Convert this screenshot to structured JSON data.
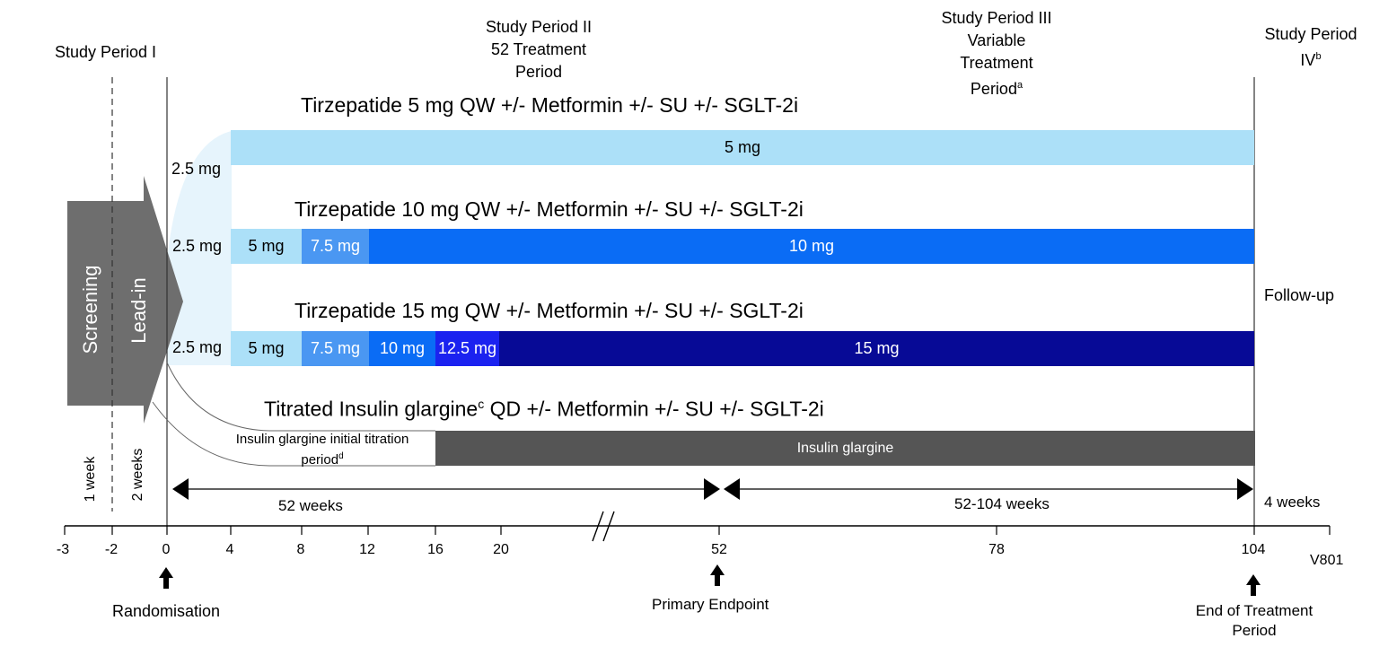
{
  "periods": {
    "p1": "Study Period I",
    "p2_line1": "Study Period II",
    "p2_line2": "52 Treatment",
    "p2_line3": "Period",
    "p3_line1": "Study Period III",
    "p3_line2": "Variable",
    "p3_line3": "Treatment",
    "p3_line4": "Period",
    "p3_sup": "a",
    "p4_line1": "Study Period",
    "p4_line2": "IV",
    "p4_sup": "b"
  },
  "arms": {
    "arm1": "Tirzepatide 5 mg QW +/- Metformin +/- SU +/- SGLT-2i",
    "arm2": "Tirzepatide 10 mg QW +/- Metformin +/- SU +/- SGLT-2i",
    "arm3": "Tirzepatide 15 mg QW +/- Metformin +/- SU +/- SGLT-2i",
    "arm4_a": "Titrated Insulin glargine",
    "arm4_sup": "c",
    "arm4_b": " QD +/- Metformin +/- SU +/- SGLT-2i"
  },
  "doses": {
    "arm1_start": "2.5 mg",
    "arm1_main": "5 mg",
    "arm2_start": "2.5 mg",
    "arm2_s2": "5 mg",
    "arm2_s3": "7.5 mg",
    "arm2_main": "10 mg",
    "arm3_start": "2.5 mg",
    "arm3_s2": "5 mg",
    "arm3_s3": "7.5 mg",
    "arm3_s4": "10 mg",
    "arm3_s5": "12.5 mg",
    "arm3_main": "15 mg",
    "glargine_titration_line1": "Insulin glargine initial titration",
    "glargine_titration_line2": "period",
    "glargine_titration_sup": "d",
    "glargine_main": "Insulin glargine"
  },
  "phases": {
    "screening": "Screening",
    "lead_in": "Lead-in",
    "follow_up": "Follow-up"
  },
  "durations": {
    "one_week": "1 week",
    "two_weeks": "2 weeks",
    "fifty_two_weeks": "52 weeks",
    "fifty_two_104_weeks": "52-104 weeks",
    "four_weeks": "4 weeks"
  },
  "axis": {
    "ticks": [
      "-3",
      "-2",
      "0",
      "4",
      "8",
      "12",
      "16",
      "20",
      "52",
      "78",
      "104"
    ],
    "end_label": "V801"
  },
  "milestones": {
    "randomisation": "Randomisation",
    "primary_endpoint": "Primary Endpoint",
    "end_treatment_line1": "End of Treatment",
    "end_treatment_line2": "Period"
  },
  "colors": {
    "light_blue": "#ace0f8",
    "mid_blue": "#4a97f2",
    "bright_blue": "#0a6cf5",
    "blue_125": "#1b22f0",
    "navy": "#070a96",
    "grey": "#575757",
    "grey_dark": "#555555",
    "faint": "#e6f4fc"
  }
}
